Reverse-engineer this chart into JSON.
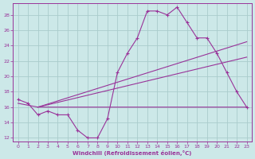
{
  "xlabel": "Windchill (Refroidissement éolien,°C)",
  "bg_color": "#cce8e8",
  "grid_color": "#aacccc",
  "line_color": "#993399",
  "xlim": [
    -0.5,
    23.5
  ],
  "ylim": [
    11.5,
    29.5
  ],
  "yticks": [
    12,
    14,
    16,
    18,
    20,
    22,
    24,
    26,
    28
  ],
  "xticks": [
    0,
    1,
    2,
    3,
    4,
    5,
    6,
    7,
    8,
    9,
    10,
    11,
    12,
    13,
    14,
    15,
    16,
    17,
    18,
    19,
    20,
    21,
    22,
    23
  ],
  "line1_x": [
    0,
    1,
    2,
    3,
    4,
    5,
    6,
    7,
    8,
    9,
    10,
    11,
    12,
    13,
    14,
    15,
    16,
    17,
    18,
    19,
    20,
    21,
    22,
    23
  ],
  "line1_y": [
    17,
    16.5,
    15,
    15.5,
    15,
    15,
    13,
    12,
    12,
    14.5,
    20.5,
    23,
    25,
    28.5,
    28.5,
    28,
    29,
    27,
    25,
    25,
    23,
    20.5,
    18,
    16
  ],
  "line2_x": [
    0,
    2,
    23
  ],
  "line2_y": [
    16.5,
    16,
    16
  ],
  "line3_x": [
    2,
    23
  ],
  "line3_y": [
    16,
    24.5
  ],
  "line4_x": [
    2,
    23
  ],
  "line4_y": [
    16,
    22.5
  ]
}
